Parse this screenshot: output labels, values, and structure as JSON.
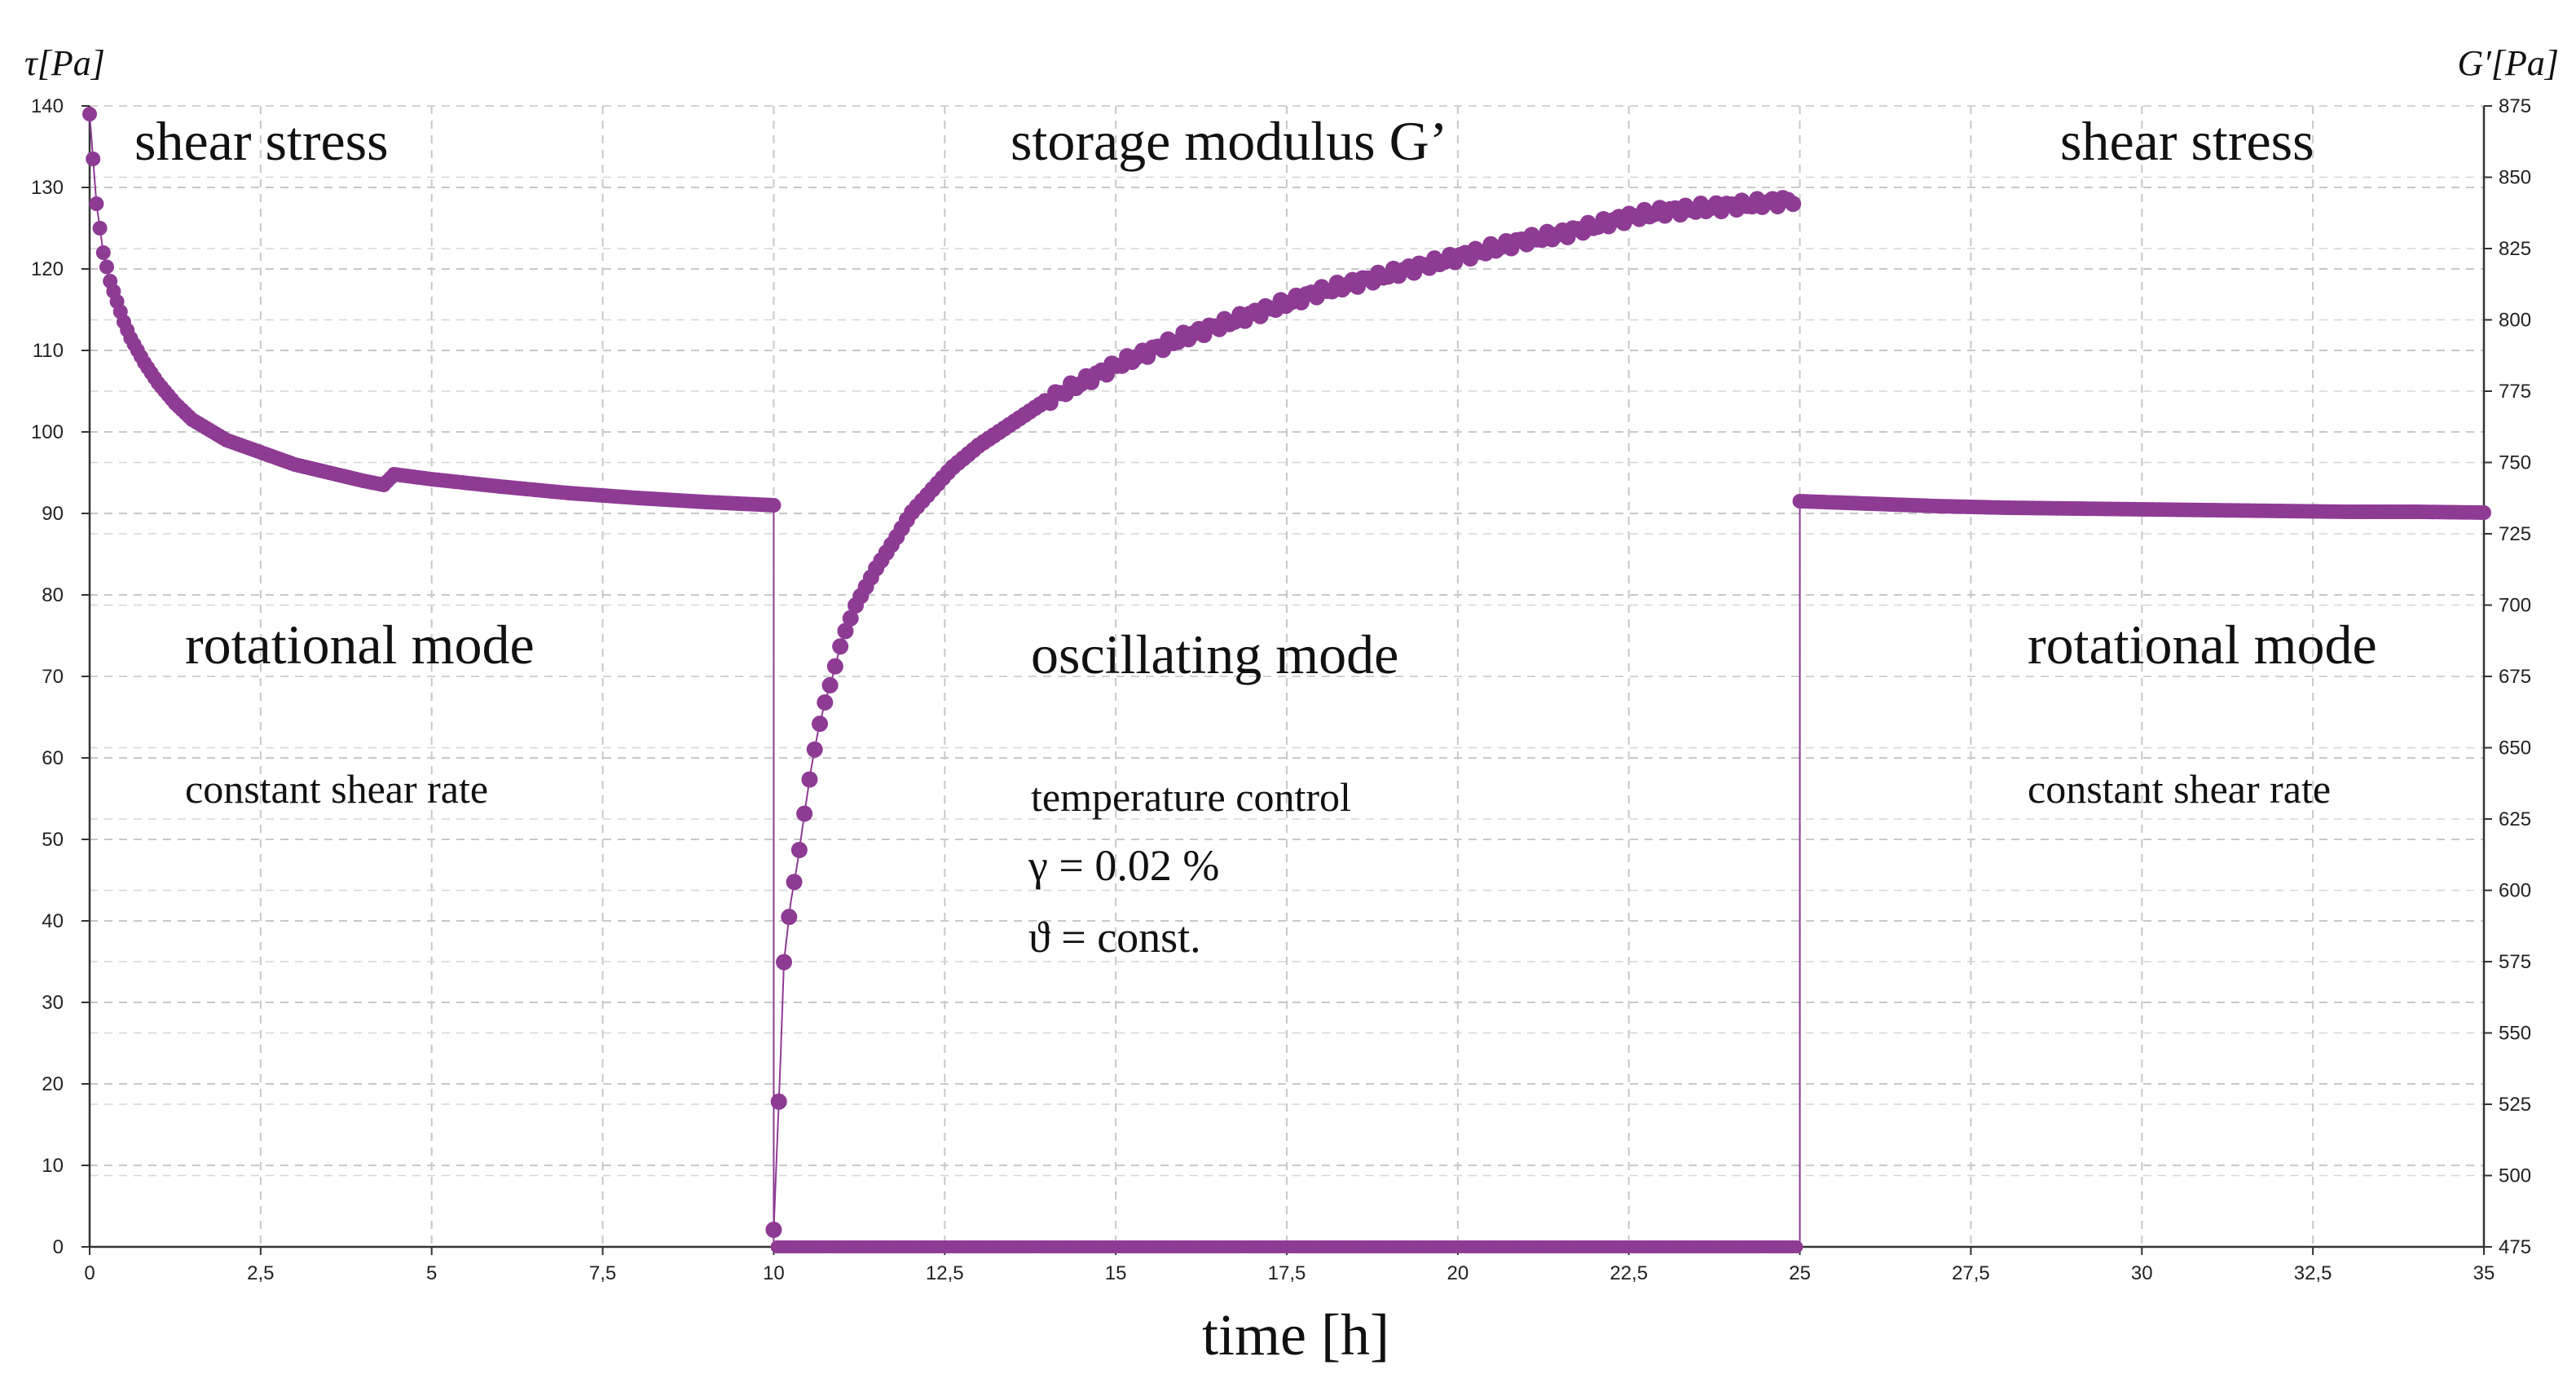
{
  "chart_data": {
    "type": "scatter",
    "title": "",
    "xlabel": "time [h]",
    "ylabel_left": "τ[Pa]",
    "ylabel_right": "G′[Pa]",
    "xlim": [
      0,
      35
    ],
    "ylim_left": [
      0,
      140
    ],
    "ylim_right": [
      475,
      875
    ],
    "grid": true,
    "marker_color": "#8e3b94",
    "x_ticks": [
      "0",
      "2,5",
      "5",
      "7,5",
      "10",
      "12,5",
      "15",
      "17,5",
      "20",
      "22,5",
      "25",
      "27,5",
      "30",
      "32,5",
      "35"
    ],
    "y_left_ticks": [
      "0",
      "10",
      "20",
      "30",
      "40",
      "50",
      "60",
      "70",
      "80",
      "90",
      "100",
      "110",
      "120",
      "130",
      "140"
    ],
    "y_right_ticks": [
      "475",
      "500",
      "525",
      "550",
      "575",
      "600",
      "625",
      "650",
      "675",
      "700",
      "725",
      "750",
      "775",
      "800",
      "825",
      "850",
      "875"
    ],
    "series": [
      {
        "axis": "left",
        "x": [
          0,
          0.1,
          0.2,
          0.3,
          0.4,
          0.5,
          0.6,
          0.8,
          1.0,
          1.25,
          1.5,
          2.0,
          2.5,
          3.0,
          3.5,
          4.0,
          4.3,
          4.45,
          5.0,
          6.0,
          7.0,
          8.0,
          9.0,
          9.5,
          10.0
        ],
        "y": [
          139,
          128,
          122,
          118.5,
          116,
          113.5,
          111.5,
          108.5,
          106,
          103.5,
          101.5,
          99,
          97.5,
          96,
          95,
          94,
          93.5,
          94.8,
          94.2,
          93.3,
          92.5,
          91.9,
          91.4,
          91.2,
          91
        ]
      },
      {
        "axis": "right",
        "x": [
          10.0,
          10.1,
          10.15,
          10.25,
          10.35,
          10.45,
          10.55,
          10.65,
          10.75,
          10.85,
          11.0,
          11.2,
          11.5,
          11.8,
          12.0,
          12.3,
          12.6,
          13.0,
          13.5,
          14.0,
          14.5,
          15.0,
          15.5,
          16.0,
          16.5,
          17.0,
          17.5,
          18.0,
          18.5,
          19.0,
          19.5,
          20.0,
          20.5,
          21.0,
          21.5,
          22.0,
          22.5,
          23.0,
          23.5,
          24.0,
          24.5,
          24.9
        ],
        "y": [
          481,
          541,
          575,
          596,
          610,
          627,
          643,
          656,
          666,
          674,
          688,
          700,
          713,
          724,
          732,
          740,
          748,
          756,
          764,
          772,
          778,
          784,
          789,
          794,
          798,
          802,
          806,
          810,
          813,
          816,
          819,
          822,
          825,
          828,
          830,
          833,
          836,
          838,
          839,
          840,
          841,
          842
        ]
      },
      {
        "axis": "left",
        "x": [
          25.0,
          26.0,
          27.0,
          28.0,
          29.0,
          30.0,
          31.0,
          32.0,
          33.0,
          34.0,
          35.0
        ],
        "y": [
          91.5,
          91.2,
          90.9,
          90.7,
          90.6,
          90.5,
          90.4,
          90.3,
          90.2,
          90.2,
          90.1
        ]
      }
    ],
    "transitions": [
      {
        "x": 10.0,
        "y_from": 91,
        "y_to": 0
      },
      {
        "x": 25.0,
        "y_from": 0,
        "y_to": 91.5
      }
    ],
    "baseline_dots": {
      "x_start": 10.05,
      "x_end": 24.95,
      "y": 0
    },
    "annotations": {
      "left_title": "shear stress",
      "center_title": "storage modulus G’",
      "right_title": "shear stress",
      "left_mode": "rotational mode",
      "center_mode": "oscillating mode",
      "right_mode": "rotational mode",
      "left_condition": "constant shear rate",
      "center_condition": "temperature control",
      "gamma": "γ = 0.02 %",
      "theta": "ϑ = const.",
      "right_condition": "constant shear rate"
    }
  }
}
